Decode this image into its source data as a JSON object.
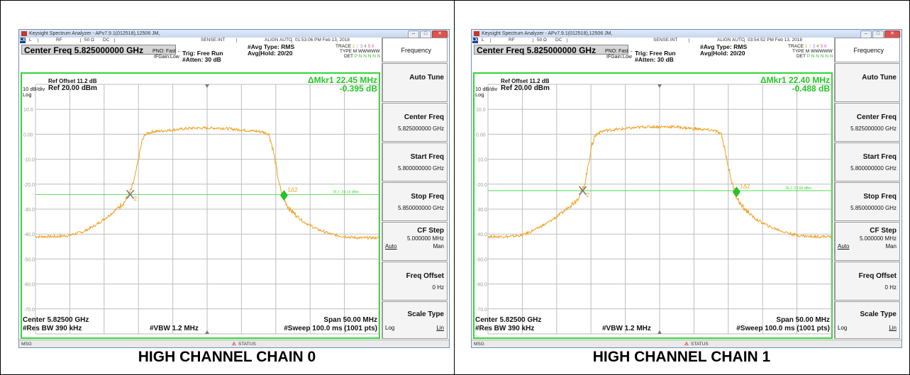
{
  "window_title": "Keysight Spectrum Analyzer - APv7.9.1(012518),12506 JM,",
  "status": {
    "l": "L",
    "rf": "RF",
    "ohm": "50 Ω",
    "dc": "DC",
    "sense": "SENSE:INT",
    "align": "ALIGN AUTO"
  },
  "lxi": "LXI",
  "center_freq_label": "Center Freq 5.825000000 GHz",
  "pno": "PNO: Fast",
  "ifgain": "IFGain:Low",
  "trig": "Trig: Free Run",
  "atten": "#Atten: 30 dB",
  "avg_type": "#Avg Type: RMS",
  "trace_lbl": "TRACE",
  "trace_nums": [
    "1",
    "2",
    "3",
    "4",
    "5",
    "6"
  ],
  "type_lbl": "TYPE",
  "type_val": "M WWWWW",
  "det_lbl": "DET",
  "det_val": "P N N N N N",
  "ref_offset": "Ref Offset 11.2 dB",
  "scale": "10 dB/div",
  "ref_level": "Ref 20.00 dBm",
  "log": "Log",
  "y_ticks": [
    "10.0",
    "0.00",
    "-10.0",
    "-20.0",
    "-30.0",
    "-40.0",
    "-50.0",
    "-60.0",
    "-70.0"
  ],
  "center_label": "Center 5.82500 GHz",
  "res_bw": "#Res BW 390 kHz",
  "vbw": "#VBW 1.2 MHz",
  "span": "Span 50.00 MHz",
  "sweep": "#Sweep  100.0 ms (1001 pts)",
  "msg": "MSG",
  "status_lbl": "STATUS",
  "marker_1_label": "1Δ2",
  "marker_2_label": "2",
  "softkeys": {
    "title": "Frequency",
    "auto_tune": "Auto Tune",
    "center_freq": "Center Freq",
    "center_freq_val": "5.825000000 GHz",
    "start_freq": "Start Freq",
    "start_freq_val": "5.800000000 GHz",
    "stop_freq": "Stop Freq",
    "stop_freq_val": "5.850000000 GHz",
    "cf_step": "CF Step",
    "cf_step_val": "5.000000 MHz",
    "auto": "Auto",
    "man": "Man",
    "freq_offset": "Freq Offset",
    "freq_offset_val": "0 Hz",
    "scale_type": "Scale Type",
    "log": "Log",
    "lin": "Lin"
  },
  "panels": [
    {
      "caption": "HIGH CHANNEL CHAIN 0",
      "time": "01:53:06 PM Feb 13, 2018",
      "avg_hold": "Avg|Hold: 20/20",
      "delta_mkr": "ΔMkr1 22.45 MHz",
      "delta_val": "-0.395 dB",
      "dl_label": "DL1 -24.13 dBm",
      "dl_dbm": -24.13
    },
    {
      "caption": "HIGH CHANNEL CHAIN 1",
      "time": "03:54:52 PM Feb 13, 2018",
      "avg_hold": "Avg|Hold: 20/20",
      "delta_mkr": "ΔMkr1 22.40 MHz",
      "delta_val": "-0.488 dB",
      "dl_label": "DL1 -22.60 dBm",
      "dl_dbm": -22.6
    }
  ],
  "chart_data": [
    {
      "type": "line",
      "x_unit": "MHz offset from center",
      "xlim": [
        -25,
        25
      ],
      "ylim": [
        -80,
        20
      ],
      "series": [
        {
          "x": [
            -25,
            -22,
            -20,
            -18,
            -16,
            -14,
            -12,
            -11,
            -10.5,
            -10,
            -9.5,
            -9,
            -8,
            -6,
            -4,
            -2,
            0,
            2,
            4,
            6,
            8,
            9,
            9.5,
            10,
            10.5,
            11,
            12,
            14,
            16,
            18,
            20,
            22,
            25
          ],
          "y": [
            -41,
            -41,
            -40.5,
            -39,
            -36,
            -32,
            -27,
            -22,
            -17,
            -10,
            -3,
            0,
            1,
            1.5,
            2,
            2.5,
            2.5,
            2.5,
            2,
            1.5,
            1,
            0,
            -5,
            -12,
            -20,
            -25,
            -30,
            -35,
            -38,
            -40,
            -41,
            -41.5,
            -41.5
          ]
        }
      ],
      "markers": [
        {
          "label": "2",
          "x": -11.2,
          "y": -24.1
        },
        {
          "label": "1Δ2",
          "x": 11.2,
          "y": -24.5
        }
      ],
      "display_line": -24.13
    },
    {
      "type": "line",
      "x_unit": "MHz offset from center",
      "xlim": [
        -25,
        25
      ],
      "ylim": [
        -80,
        20
      ],
      "series": [
        {
          "x": [
            -25,
            -22,
            -20,
            -18,
            -16,
            -14,
            -12,
            -11,
            -10.5,
            -10,
            -9.5,
            -9,
            -8,
            -6,
            -4,
            -2,
            0,
            2,
            4,
            6,
            8,
            9,
            9.5,
            10,
            10.5,
            11,
            12,
            14,
            16,
            18,
            20,
            22,
            25
          ],
          "y": [
            -41,
            -41,
            -40.5,
            -38,
            -35,
            -31,
            -26,
            -21,
            -14,
            -6,
            -1,
            0.5,
            1.5,
            2,
            2.5,
            3,
            3,
            3,
            2.5,
            2,
            1.5,
            0,
            -6,
            -13,
            -19,
            -24,
            -29,
            -34,
            -37,
            -39,
            -40.5,
            -41,
            -41
          ]
        }
      ],
      "markers": [
        {
          "label": "2",
          "x": -11.2,
          "y": -22.6
        },
        {
          "label": "1Δ2",
          "x": 11.2,
          "y": -23.1
        }
      ],
      "display_line": -22.6
    }
  ],
  "colors": {
    "trace": "#f0a020",
    "display_line": "#33d633",
    "grid": "#bdbdbd",
    "marker_active": "#22c822",
    "marker_ref": "#7a7a7a",
    "delta_text": "#22c822"
  }
}
